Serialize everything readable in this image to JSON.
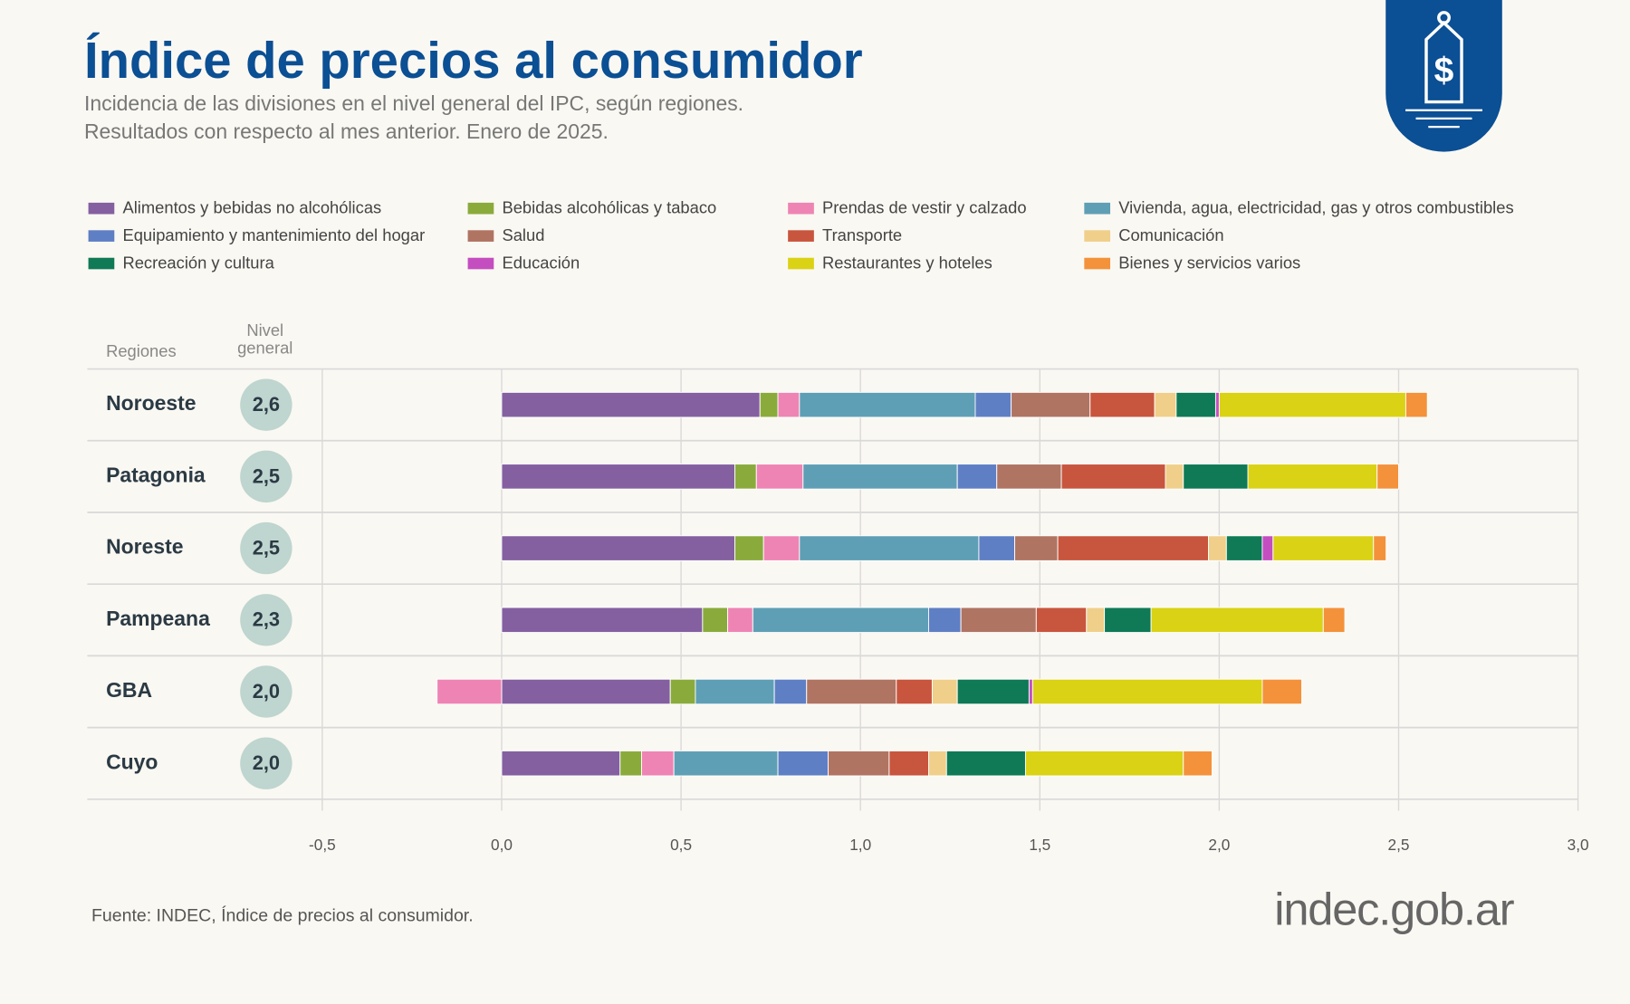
{
  "chart_data": {
    "type": "stacked-bar-horizontal",
    "title": "Índice de precios al consumidor",
    "subtitle": [
      "Incidencia de las divisiones en el nivel general del IPC, según regiones.",
      "Resultados con respecto al mes anterior. Enero de 2025."
    ],
    "row_header": "Regiones",
    "level_header": "Nivel general",
    "categories": [
      "Noroeste",
      "Patagonia",
      "Noreste",
      "Pampeana",
      "GBA",
      "Cuyo"
    ],
    "general_level": {
      "values": [
        2.6,
        2.5,
        2.5,
        2.3,
        2.0,
        2.0
      ],
      "value_labels": [
        "2,6",
        "2,5",
        "2,5",
        "2,3",
        "2,0",
        "2,0"
      ],
      "color": "#bfd5cf"
    },
    "series": [
      {
        "name": "Alimentos y bebidas no alcohólicas",
        "color": "#8460a0",
        "values": [
          0.72,
          0.65,
          0.65,
          0.56,
          0.47,
          0.33
        ]
      },
      {
        "name": "Bebidas alcohólicas y tabaco",
        "color": "#8aab3c",
        "values": [
          0.05,
          0.06,
          0.08,
          0.07,
          0.07,
          0.06
        ]
      },
      {
        "name": "Prendas de vestir y calzado",
        "color": "#ee84b4",
        "values": [
          0.06,
          0.13,
          0.1,
          0.07,
          -0.18,
          0.09
        ]
      },
      {
        "name": "Vivienda, agua, electricidad, gas y otros combustibles",
        "color": "#5f9fb5",
        "values": [
          0.49,
          0.43,
          0.5,
          0.49,
          0.22,
          0.29
        ]
      },
      {
        "name": "Equipamiento y mantenimiento del hogar",
        "color": "#5f7fc4",
        "values": [
          0.1,
          0.11,
          0.1,
          0.09,
          0.09,
          0.14
        ]
      },
      {
        "name": "Salud",
        "color": "#b07462",
        "values": [
          0.22,
          0.18,
          0.12,
          0.21,
          0.25,
          0.17
        ]
      },
      {
        "name": "Transporte",
        "color": "#c8553d",
        "values": [
          0.18,
          0.29,
          0.42,
          0.14,
          0.1,
          0.11
        ]
      },
      {
        "name": "Comunicación",
        "color": "#efcf8a",
        "values": [
          0.06,
          0.05,
          0.05,
          0.05,
          0.07,
          0.05
        ]
      },
      {
        "name": "Recreación y cultura",
        "color": "#0f7a55",
        "values": [
          0.11,
          0.18,
          0.1,
          0.13,
          0.2,
          0.22
        ]
      },
      {
        "name": "Educación",
        "color": "#c44ec0",
        "values": [
          0.01,
          0,
          0.03,
          0,
          0.01,
          0
        ]
      },
      {
        "name": "Restaurantes y hoteles",
        "color": "#dad214",
        "values": [
          0.52,
          0.36,
          0.28,
          0.48,
          0.64,
          0.44
        ]
      },
      {
        "name": "Bienes y servicios varios",
        "color": "#f3923b",
        "values": [
          0.06,
          0.06,
          0.035,
          0.06,
          0.11,
          0.08
        ]
      }
    ],
    "xlim": [
      -0.5,
      3.0
    ],
    "xticks": [
      {
        "value": -0.5,
        "label": "-0,5"
      },
      {
        "value": 0,
        "label": "0,0"
      },
      {
        "value": 0.5,
        "label": "0,5"
      },
      {
        "value": 1,
        "label": "1,0"
      },
      {
        "value": 1.5,
        "label": "1,5"
      },
      {
        "value": 2,
        "label": "2,0"
      },
      {
        "value": 2.5,
        "label": "2,5"
      },
      {
        "value": 3,
        "label": "3,0"
      }
    ],
    "grid": true,
    "source": "Fuente: INDEC, Índice de precios al consumidor.",
    "logo": "indec.gob.ar"
  }
}
